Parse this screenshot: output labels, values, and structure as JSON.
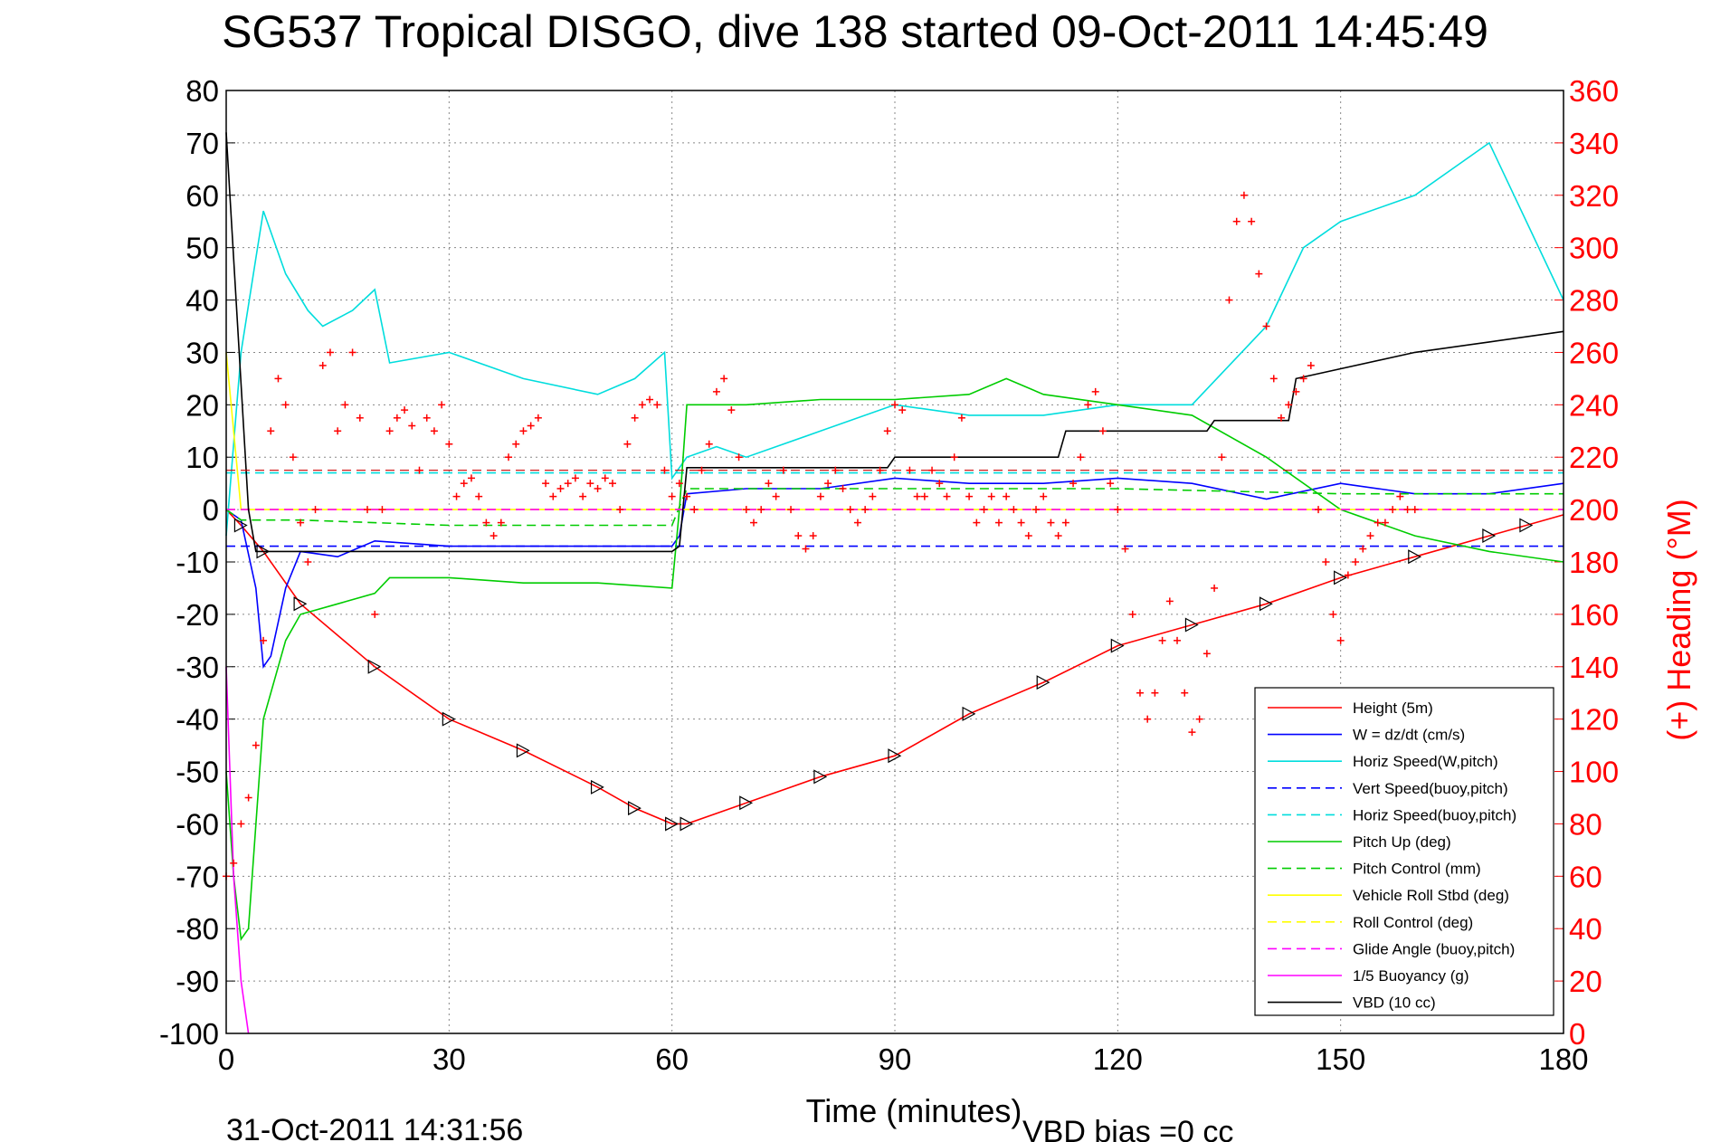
{
  "chart_data": {
    "type": "line",
    "title": "SG537 Tropical DISGO, dive 138 started 09-Oct-2011 14:45:49",
    "xlabel": "Time (minutes)",
    "ylabel": "",
    "y2label": "(+) Heading (°M)",
    "xlim": [
      0,
      180
    ],
    "ylim": [
      -100,
      80
    ],
    "y2lim": [
      0,
      360
    ],
    "xticks": [
      "0",
      "30",
      "60",
      "90",
      "120",
      "150",
      "180"
    ],
    "yticks": [
      "80",
      "70",
      "60",
      "50",
      "40",
      "30",
      "20",
      "10",
      "0",
      "-10",
      "-20",
      "-30",
      "-40",
      "-50",
      "-60",
      "-70",
      "-80",
      "-90",
      "-100"
    ],
    "y2ticks": [
      "360",
      "340",
      "320",
      "300",
      "280",
      "260",
      "240",
      "220",
      "200",
      "180",
      "160",
      "140",
      "120",
      "100",
      "80",
      "60",
      "40",
      "20",
      "0"
    ],
    "grid": true,
    "legend_position": "bottom-right",
    "footer_left": "31-Oct-2011 14:31:56",
    "footer_right": "VBD bias =0 cc",
    "series": [
      {
        "name": "Height (5m)",
        "color": "#ff0000",
        "style": "solid",
        "x": [
          0,
          2,
          5,
          10,
          20,
          30,
          40,
          50,
          55,
          60,
          62,
          70,
          80,
          90,
          100,
          110,
          120,
          130,
          140,
          150,
          160,
          170,
          175,
          180
        ],
        "y": [
          0,
          -3,
          -8,
          -18,
          -30,
          -40,
          -46,
          -53,
          -57,
          -60,
          -60,
          -56,
          -51,
          -47,
          -39,
          -33,
          -26,
          -22,
          -18,
          -13,
          -9,
          -5,
          -3,
          -1
        ]
      },
      {
        "name": "W = dz/dt (cm/s)",
        "color": "#0000ff",
        "style": "solid",
        "x": [
          0,
          2,
          4,
          5,
          6,
          8,
          10,
          15,
          20,
          30,
          40,
          50,
          60,
          61,
          62,
          70,
          80,
          90,
          100,
          110,
          120,
          130,
          140,
          150,
          160,
          170,
          180
        ],
        "y": [
          0,
          -2,
          -15,
          -30,
          -28,
          -15,
          -8,
          -9,
          -6,
          -7,
          -7,
          -7,
          -7,
          -5,
          3,
          4,
          4,
          6,
          5,
          5,
          6,
          5,
          2,
          5,
          3,
          3,
          5
        ]
      },
      {
        "name": "Horiz Speed(W,pitch)",
        "color": "#00dddd",
        "style": "solid",
        "x": [
          0,
          2,
          4,
          5,
          8,
          11,
          13,
          17,
          20,
          22,
          30,
          40,
          50,
          55,
          59,
          60,
          62,
          66,
          70,
          80,
          90,
          100,
          110,
          120,
          130,
          140,
          145,
          150,
          160,
          170,
          180
        ],
        "y": [
          -5,
          30,
          48,
          57,
          45,
          38,
          35,
          38,
          42,
          28,
          30,
          25,
          22,
          25,
          30,
          6,
          10,
          12,
          10,
          15,
          20,
          18,
          18,
          20,
          20,
          35,
          50,
          55,
          60,
          70,
          40
        ]
      },
      {
        "name": "Vert Speed(buoy,pitch)",
        "color": "#0000ff",
        "style": "dashed",
        "x": [
          0,
          180
        ],
        "y": [
          -7,
          -7
        ]
      },
      {
        "name": "Horiz Speed(buoy,pitch)",
        "color": "#00dddd",
        "style": "dashed",
        "x": [
          0,
          180
        ],
        "y": [
          7,
          7
        ]
      },
      {
        "name": "Pitch Up (deg)",
        "color": "#00cc00",
        "style": "solid",
        "x": [
          0,
          1,
          2,
          3,
          5,
          8,
          10,
          15,
          20,
          22,
          30,
          40,
          50,
          60,
          61,
          62,
          70,
          80,
          90,
          100,
          105,
          110,
          120,
          130,
          140,
          150,
          160,
          170,
          180
        ],
        "y": [
          -50,
          -70,
          -82,
          -80,
          -40,
          -25,
          -20,
          -18,
          -16,
          -13,
          -13,
          -14,
          -14,
          -15,
          0,
          20,
          20,
          21,
          21,
          22,
          25,
          22,
          20,
          18,
          10,
          0,
          -5,
          -8,
          -10
        ]
      },
      {
        "name": "Pitch Control (mm)",
        "color": "#00cc00",
        "style": "dashed",
        "x": [
          0,
          2,
          10,
          30,
          60,
          62,
          90,
          120,
          150,
          180
        ],
        "y": [
          0,
          -2,
          -2,
          -3,
          -3,
          4,
          4,
          4,
          3,
          3
        ]
      },
      {
        "name": "Vehicle Roll Stbd (deg)",
        "color": "#ffff00",
        "style": "solid",
        "x": [
          0,
          2,
          10,
          30,
          60,
          90,
          120,
          150,
          170,
          180
        ],
        "y": [
          30,
          0,
          0,
          0,
          0,
          0,
          0,
          0,
          0,
          0
        ]
      },
      {
        "name": "Roll Control (deg)",
        "color": "#ffff00",
        "style": "dashed",
        "x": [
          0,
          180
        ],
        "y": [
          0,
          0
        ]
      },
      {
        "name": "Glide Angle (buoy,pitch)",
        "color": "#ff00ff",
        "style": "dashed",
        "x": [
          0,
          180
        ],
        "y": [
          0,
          0
        ]
      },
      {
        "name": "1/5 Buoyancy (g)",
        "color": "#ff00ff",
        "style": "solid",
        "x": [
          0,
          1,
          2,
          3
        ],
        "y": [
          -30,
          -70,
          -90,
          -100
        ]
      },
      {
        "name": "VBD (10 cc)",
        "color": "#000000",
        "style": "solid",
        "x": [
          0,
          3,
          4,
          30,
          60,
          61,
          62,
          89,
          90,
          112,
          113,
          132,
          133,
          143,
          144,
          160,
          170,
          180
        ],
        "y": [
          72,
          0,
          -8,
          -8,
          -8,
          -7,
          8,
          8,
          10,
          10,
          15,
          15,
          17,
          17,
          25,
          30,
          32,
          34
        ]
      }
    ],
    "heading_series": {
      "name": "Heading",
      "marker": "+",
      "color": "#ff0000",
      "axis": "right",
      "x": [
        0,
        1,
        2,
        3,
        4,
        5,
        6,
        7,
        8,
        9,
        10,
        11,
        12,
        13,
        14,
        15,
        16,
        17,
        18,
        19,
        20,
        21,
        22,
        23,
        24,
        25,
        26,
        27,
        28,
        29,
        30,
        31,
        32,
        33,
        34,
        35,
        36,
        37,
        38,
        39,
        40,
        41,
        42,
        43,
        44,
        45,
        46,
        47,
        48,
        49,
        50,
        51,
        52,
        53,
        54,
        55,
        56,
        57,
        58,
        59,
        60,
        61,
        62,
        63,
        64,
        65,
        66,
        67,
        68,
        69,
        70,
        71,
        72,
        73,
        74,
        75,
        76,
        77,
        78,
        79,
        80,
        81,
        82,
        83,
        84,
        85,
        86,
        87,
        88,
        89,
        90,
        91,
        92,
        93,
        94,
        95,
        96,
        97,
        98,
        99,
        100,
        101,
        102,
        103,
        104,
        105,
        106,
        107,
        108,
        109,
        110,
        111,
        112,
        113,
        114,
        115,
        116,
        117,
        118,
        119,
        120,
        121,
        122,
        123,
        124,
        125,
        126,
        127,
        128,
        129,
        130,
        131,
        132,
        133,
        134,
        135,
        136,
        137,
        138,
        139,
        140,
        141,
        142,
        143,
        144,
        145,
        146,
        147,
        148,
        149,
        150,
        151,
        152,
        153,
        154,
        155,
        156,
        157,
        158,
        159,
        160
      ],
      "y": [
        60,
        65,
        80,
        90,
        110,
        150,
        230,
        250,
        240,
        220,
        195,
        180,
        200,
        255,
        260,
        230,
        240,
        260,
        235,
        200,
        160,
        200,
        230,
        235,
        238,
        232,
        215,
        235,
        230,
        240,
        225,
        205,
        210,
        212,
        205,
        195,
        190,
        195,
        220,
        225,
        230,
        232,
        235,
        210,
        205,
        208,
        210,
        212,
        205,
        210,
        208,
        212,
        210,
        200,
        225,
        235,
        240,
        242,
        240,
        215,
        205,
        210,
        205,
        200,
        215,
        225,
        245,
        250,
        238,
        220,
        200,
        195,
        200,
        210,
        205,
        215,
        200,
        190,
        185,
        190,
        205,
        210,
        215,
        208,
        200,
        195,
        200,
        205,
        215,
        230,
        240,
        238,
        215,
        205,
        205,
        215,
        210,
        205,
        220,
        235,
        205,
        195,
        200,
        205,
        195,
        205,
        200,
        195,
        190,
        200,
        205,
        195,
        190,
        195,
        210,
        220,
        240,
        245,
        230,
        210,
        200,
        185,
        160,
        130,
        120,
        130,
        150,
        165,
        150,
        130,
        115,
        120,
        145,
        170,
        220,
        280,
        310,
        320,
        310,
        290,
        270,
        250,
        235,
        240,
        245,
        250,
        255,
        200,
        180,
        160,
        150,
        175,
        180,
        185,
        190,
        195,
        195,
        200,
        205,
        200,
        200
      ]
    },
    "heading_ref": {
      "color": "#cc0000",
      "style": "dashed",
      "value": 215
    }
  },
  "legend_entries": [
    "Height (5m)",
    "W = dz/dt (cm/s)",
    "Horiz Speed(W,pitch)",
    "Vert Speed(buoy,pitch)",
    "Horiz Speed(buoy,pitch)",
    "Pitch Up (deg)",
    "Pitch Control (mm)",
    "Vehicle Roll Stbd (deg)",
    "Roll Control (deg)",
    "Glide Angle (buoy,pitch)",
    "1/5 Buoyancy (g)",
    "VBD (10 cc)"
  ]
}
